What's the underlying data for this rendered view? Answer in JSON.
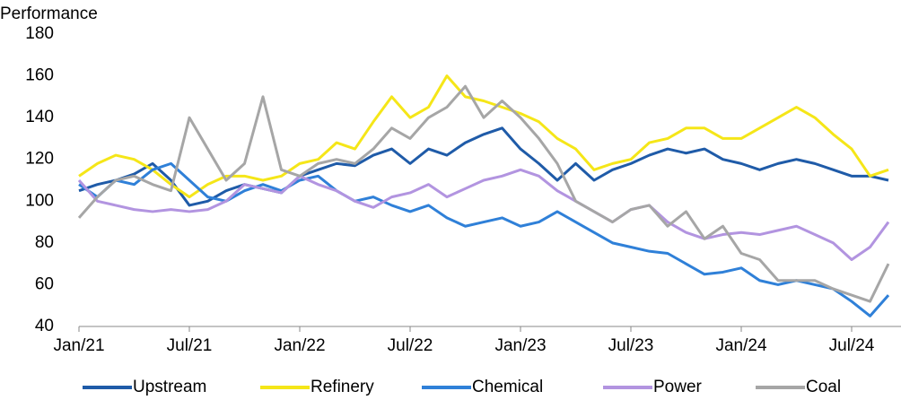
{
  "chart_data": {
    "type": "line",
    "y_label": "Performance",
    "categories": [
      "Jan/21",
      null,
      null,
      null,
      null,
      null,
      "Jul/21",
      null,
      null,
      null,
      null,
      null,
      "Jan/22",
      null,
      null,
      null,
      null,
      null,
      "Jul/22",
      null,
      null,
      null,
      null,
      null,
      "Jan/23",
      null,
      null,
      null,
      null,
      null,
      "Jul/23",
      null,
      null,
      null,
      null,
      null,
      "Jan/24",
      null,
      null,
      null,
      null,
      null,
      "Jul/24",
      null,
      null
    ],
    "ylim": [
      40,
      180
    ],
    "yticks": [
      40,
      60,
      80,
      100,
      120,
      140,
      160,
      180
    ],
    "legend": "bottom",
    "series": [
      {
        "name": "Upstream",
        "color": "#1f5ba8",
        "values": [
          105,
          108,
          110,
          113,
          118,
          110,
          98,
          100,
          105,
          108,
          106,
          104,
          112,
          115,
          118,
          117,
          122,
          125,
          118,
          125,
          122,
          128,
          132,
          135,
          125,
          118,
          110,
          118,
          110,
          115,
          118,
          122,
          125,
          123,
          125,
          120,
          118,
          115,
          118,
          120,
          118,
          115,
          112,
          112,
          110
        ]
      },
      {
        "name": "Refinery",
        "color": "#f5e618",
        "values": [
          112,
          118,
          122,
          120,
          115,
          108,
          102,
          108,
          112,
          112,
          110,
          112,
          118,
          120,
          128,
          125,
          138,
          150,
          140,
          145,
          160,
          150,
          148,
          145,
          142,
          138,
          130,
          125,
          115,
          118,
          120,
          128,
          130,
          135,
          135,
          130,
          130,
          135,
          140,
          145,
          140,
          132,
          125,
          112,
          115
        ]
      },
      {
        "name": "Chemical",
        "color": "#2f80d8",
        "values": [
          108,
          102,
          110,
          108,
          115,
          118,
          110,
          102,
          100,
          105,
          108,
          105,
          110,
          112,
          105,
          100,
          102,
          98,
          95,
          98,
          92,
          88,
          90,
          92,
          88,
          90,
          95,
          90,
          85,
          80,
          78,
          76,
          75,
          70,
          65,
          66,
          68,
          62,
          60,
          62,
          60,
          58,
          52,
          45,
          55
        ]
      },
      {
        "name": "Power",
        "color": "#b294e0",
        "values": [
          110,
          100,
          98,
          96,
          95,
          96,
          95,
          96,
          100,
          108,
          106,
          104,
          112,
          108,
          105,
          100,
          97,
          102,
          104,
          108,
          102,
          106,
          110,
          112,
          115,
          112,
          105,
          100,
          95,
          90,
          96,
          98,
          90,
          85,
          82,
          84,
          85,
          84,
          86,
          88,
          84,
          80,
          72,
          78,
          90
        ]
      },
      {
        "name": "Coal",
        "color": "#a6a6a6",
        "values": [
          92,
          102,
          110,
          112,
          108,
          105,
          140,
          125,
          110,
          118,
          150,
          115,
          112,
          118,
          120,
          118,
          125,
          135,
          130,
          140,
          145,
          155,
          140,
          148,
          140,
          130,
          118,
          100,
          95,
          90,
          96,
          98,
          88,
          95,
          82,
          88,
          75,
          72,
          62,
          62,
          62,
          58,
          55,
          52,
          70
        ]
      }
    ]
  }
}
